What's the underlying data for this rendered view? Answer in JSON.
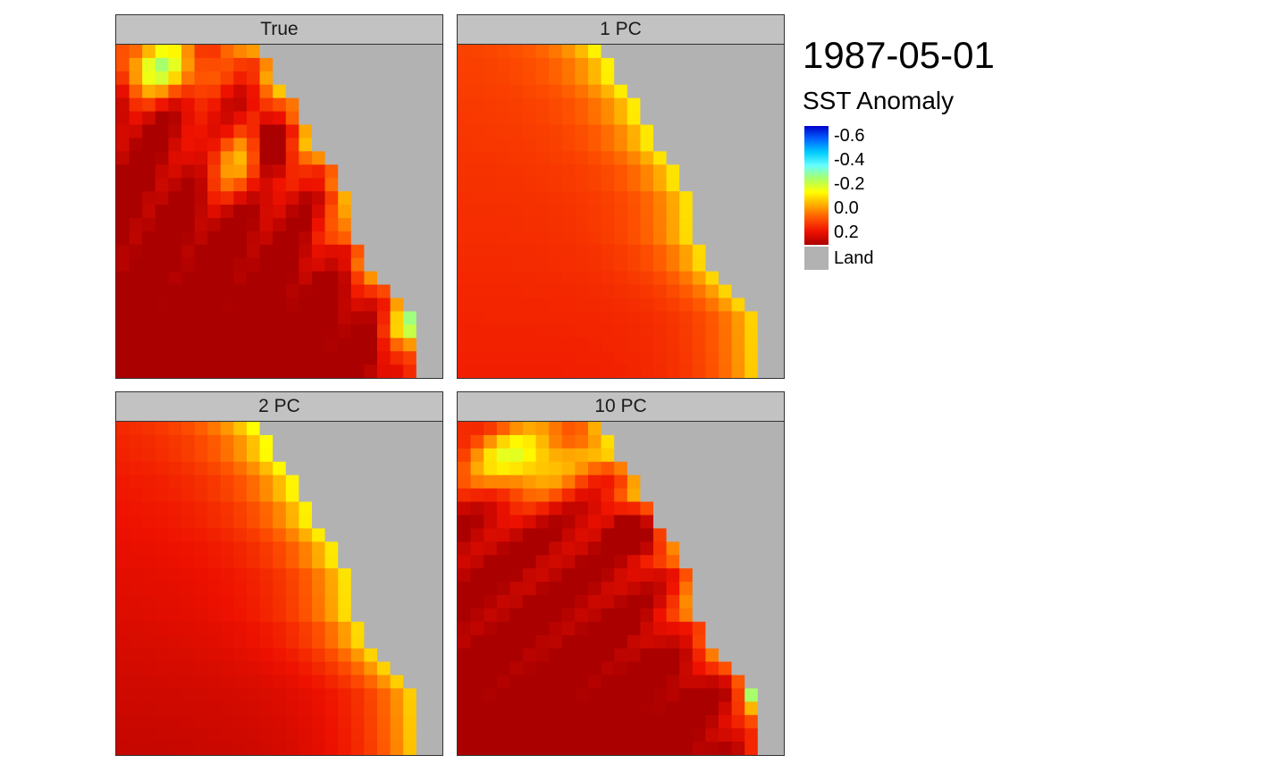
{
  "title": "1987-05-01",
  "chart_data": {
    "type": "heatmap",
    "panels": [
      {
        "label": "True",
        "variant": "true"
      },
      {
        "label": "1 PC",
        "variant": "pc1"
      },
      {
        "label": "2 PC",
        "variant": "pc2"
      },
      {
        "label": "10 PC",
        "variant": "pc10"
      }
    ],
    "legend": {
      "title": "SST Anomaly",
      "ticks": [
        "-0.6",
        "-0.4",
        "-0.2",
        "0.0",
        "0.2"
      ],
      "tick_values": [
        -0.6,
        -0.4,
        -0.2,
        0.0,
        0.2
      ],
      "range": [
        -0.68,
        0.3
      ],
      "land_label": "Land",
      "land_color": "#b2b2b2",
      "colormap": [
        "#0000cc",
        "#0066ff",
        "#00ccff",
        "#66ffff",
        "#aaff66",
        "#ffff00",
        "#ffaa00",
        "#ff5500",
        "#ee1100",
        "#aa0000"
      ],
      "placement": "right"
    },
    "grid_columns": 25,
    "grid_rows": 25,
    "land_mask_start_column_by_row": [
      11,
      12,
      12,
      13,
      14,
      14,
      15,
      15,
      16,
      17,
      17,
      18,
      18,
      18,
      18,
      19,
      19,
      20,
      21,
      22,
      23,
      23,
      23,
      23,
      23
    ]
  }
}
